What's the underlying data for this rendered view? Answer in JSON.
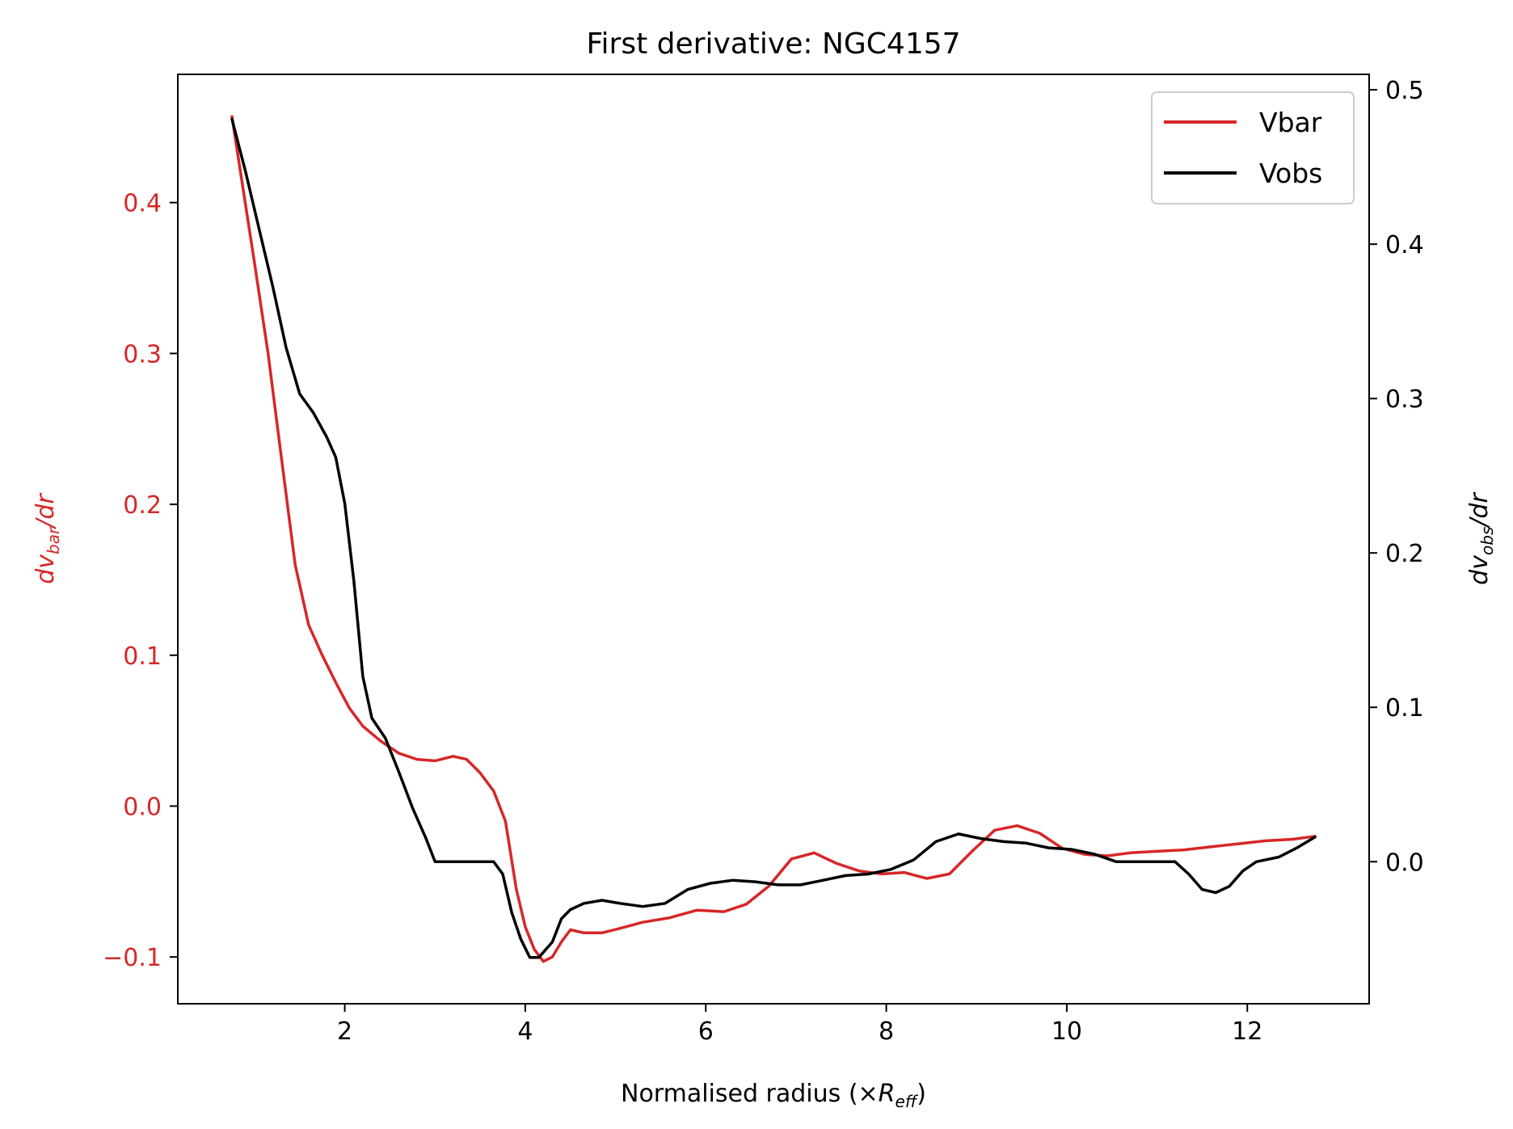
{
  "chart_data": {
    "type": "line",
    "title": "First derivative: NGC4157",
    "xlabel": {
      "prefix": "Normalised radius (×",
      "var": "R",
      "sub": "eff",
      "suffix": ")"
    },
    "ylabel_left": {
      "prefix": "dv",
      "sub": "bar",
      "suffix": "/dr"
    },
    "ylabel_right": {
      "prefix": "dv",
      "sub": "obs",
      "suffix": "/dr"
    },
    "xlim": [
      0.15,
      13.35
    ],
    "ylim_left": [
      -0.131,
      0.485
    ],
    "ylim_right": [
      -0.092,
      0.51
    ],
    "x_ticks": [
      2,
      4,
      6,
      8,
      10,
      12
    ],
    "x_tick_labels": [
      "2",
      "4",
      "6",
      "8",
      "10",
      "12"
    ],
    "y_left_ticks": [
      -0.1,
      0.0,
      0.1,
      0.2,
      0.3,
      0.4
    ],
    "y_left_tick_labels": [
      "−0.1",
      "0.0",
      "0.1",
      "0.2",
      "0.3",
      "0.4"
    ],
    "y_right_ticks": [
      0.0,
      0.1,
      0.2,
      0.3,
      0.4,
      0.5
    ],
    "y_right_tick_labels": [
      "0.0",
      "0.1",
      "0.2",
      "0.3",
      "0.4",
      "0.5"
    ],
    "legend_position": "top-right",
    "grid": false,
    "colors": {
      "vbar": "#d62728",
      "vobs": "#000000",
      "left_axis": "#d62728",
      "right_axis": "#000000"
    },
    "series": [
      {
        "name": "Vbar",
        "axis": "left",
        "color": "#d62728",
        "x": [
          0.75,
          1.0,
          1.15,
          1.3,
          1.45,
          1.6,
          1.75,
          1.9,
          2.05,
          2.2,
          2.4,
          2.6,
          2.8,
          3.0,
          3.2,
          3.35,
          3.5,
          3.65,
          3.78,
          3.9,
          4.0,
          4.1,
          4.2,
          4.3,
          4.4,
          4.5,
          4.65,
          4.85,
          5.05,
          5.3,
          5.6,
          5.9,
          6.2,
          6.45,
          6.7,
          6.95,
          7.2,
          7.45,
          7.7,
          7.95,
          8.2,
          8.45,
          8.7,
          8.95,
          9.2,
          9.45,
          9.7,
          9.95,
          10.2,
          10.45,
          10.7,
          11.0,
          11.3,
          11.6,
          11.9,
          12.2,
          12.5,
          12.75
        ],
        "y": [
          0.457,
          0.36,
          0.3,
          0.23,
          0.16,
          0.12,
          0.1,
          0.082,
          0.065,
          0.053,
          0.043,
          0.035,
          0.031,
          0.03,
          0.033,
          0.031,
          0.022,
          0.01,
          -0.01,
          -0.055,
          -0.08,
          -0.095,
          -0.103,
          -0.1,
          -0.09,
          -0.082,
          -0.084,
          -0.084,
          -0.081,
          -0.077,
          -0.074,
          -0.069,
          -0.07,
          -0.065,
          -0.053,
          -0.035,
          -0.031,
          -0.038,
          -0.043,
          -0.045,
          -0.044,
          -0.048,
          -0.045,
          -0.03,
          -0.016,
          -0.013,
          -0.018,
          -0.028,
          -0.032,
          -0.033,
          -0.031,
          -0.03,
          -0.029,
          -0.027,
          -0.025,
          -0.023,
          -0.022,
          -0.02
        ]
      },
      {
        "name": "Vobs",
        "axis": "right",
        "color": "#000000",
        "x": [
          0.75,
          0.9,
          1.05,
          1.2,
          1.35,
          1.5,
          1.65,
          1.8,
          1.9,
          2.0,
          2.1,
          2.2,
          2.3,
          2.45,
          2.6,
          2.75,
          2.9,
          3.0,
          3.1,
          3.25,
          3.45,
          3.65,
          3.75,
          3.85,
          3.95,
          4.05,
          4.15,
          4.3,
          4.4,
          4.5,
          4.65,
          4.85,
          5.05,
          5.3,
          5.55,
          5.8,
          6.05,
          6.3,
          6.55,
          6.8,
          7.05,
          7.3,
          7.55,
          7.8,
          8.05,
          8.3,
          8.55,
          8.8,
          9.05,
          9.3,
          9.55,
          9.8,
          10.05,
          10.3,
          10.55,
          10.8,
          11.0,
          11.2,
          11.35,
          11.5,
          11.65,
          11.8,
          11.95,
          12.1,
          12.35,
          12.55,
          12.75
        ],
        "y": [
          0.481,
          0.447,
          0.41,
          0.373,
          0.333,
          0.303,
          0.291,
          0.275,
          0.262,
          0.232,
          0.182,
          0.12,
          0.093,
          0.08,
          0.058,
          0.035,
          0.015,
          0.0,
          0.0,
          0.0,
          0.0,
          0.0,
          -0.008,
          -0.033,
          -0.05,
          -0.062,
          -0.062,
          -0.052,
          -0.037,
          -0.031,
          -0.027,
          -0.025,
          -0.027,
          -0.029,
          -0.027,
          -0.018,
          -0.014,
          -0.012,
          -0.013,
          -0.015,
          -0.015,
          -0.012,
          -0.009,
          -0.008,
          -0.005,
          0.001,
          0.013,
          0.018,
          0.015,
          0.013,
          0.012,
          0.009,
          0.008,
          0.005,
          0.0,
          0.0,
          0.0,
          0.0,
          -0.008,
          -0.018,
          -0.02,
          -0.016,
          -0.006,
          0.0,
          0.003,
          0.009,
          0.016
        ]
      }
    ]
  }
}
